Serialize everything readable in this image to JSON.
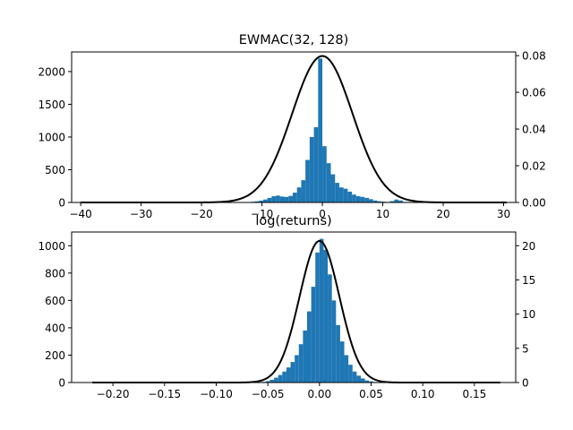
{
  "colors": {
    "bar": "#1f77b4",
    "curve": "#000000",
    "axes": "#000000",
    "background": "#ffffff"
  },
  "chart_data": [
    {
      "type": "bar",
      "title": "EWMAC(32, 128)",
      "xlabel": "",
      "ylabel": "",
      "grid": false,
      "xlim": [
        -41.5,
        32.0
      ],
      "ylim": [
        0,
        2300
      ],
      "y2lim": [
        0,
        0.082
      ],
      "xticks": [
        -40,
        -30,
        -20,
        -10,
        0,
        10,
        20,
        30
      ],
      "xtick_labels": [
        "−40",
        "−30",
        "−20",
        "−10",
        "0",
        "10",
        "20",
        "30"
      ],
      "yticks": [
        0,
        500,
        1000,
        1500,
        2000
      ],
      "ytick_labels": [
        "0",
        "500",
        "1000",
        "1500",
        "2000"
      ],
      "y2ticks": [
        0,
        0.02,
        0.04,
        0.06,
        0.08
      ],
      "y2tick_labels": [
        "0.00",
        "0.02",
        "0.04",
        "0.06",
        "0.08"
      ],
      "histogram": {
        "series_name": "",
        "bin_width": 0.7,
        "bin_centers": [
          -12.25,
          -11.55,
          -10.85,
          -10.15,
          -9.45,
          -8.75,
          -8.05,
          -7.35,
          -6.65,
          -5.95,
          -5.25,
          -4.55,
          -3.85,
          -3.15,
          -2.45,
          -1.75,
          -1.05,
          -0.35,
          0.35,
          1.05,
          1.75,
          2.45,
          3.15,
          3.85,
          4.55,
          5.25,
          5.95,
          6.65,
          7.35,
          8.05,
          8.75,
          9.45,
          10.15,
          10.85,
          11.55,
          12.25,
          12.95,
          13.65,
          14.35,
          15.05
        ],
        "counts": [
          6,
          10,
          18,
          28,
          45,
          70,
          95,
          105,
          90,
          85,
          100,
          150,
          230,
          340,
          650,
          1000,
          1150,
          2200,
          860,
          600,
          430,
          300,
          230,
          210,
          165,
          120,
          95,
          85,
          70,
          50,
          30,
          18,
          12,
          8,
          20,
          45,
          30,
          8,
          5,
          3
        ]
      },
      "density_curve": {
        "distribution": "normal fit",
        "mean": 0.0,
        "std": 5.0,
        "x_range": [
          -40.0,
          30.5
        ],
        "peak": 0.0798
      }
    },
    {
      "type": "bar",
      "title": "log(returns)",
      "xlabel": "",
      "ylabel": "",
      "grid": false,
      "xlim": [
        -0.24,
        0.19
      ],
      "ylim": [
        0,
        1100
      ],
      "y2lim": [
        0,
        22
      ],
      "xticks": [
        -0.2,
        -0.15,
        -0.1,
        -0.05,
        0.0,
        0.05,
        0.1,
        0.15
      ],
      "xtick_labels": [
        "−0.20",
        "−0.15",
        "−0.10",
        "−0.05",
        "0.00",
        "0.05",
        "0.10",
        "0.15"
      ],
      "yticks": [
        0,
        200,
        400,
        600,
        800,
        1000
      ],
      "ytick_labels": [
        "0",
        "200",
        "400",
        "600",
        "800",
        "1000"
      ],
      "y2ticks": [
        0,
        5,
        10,
        15,
        20
      ],
      "y2tick_labels": [
        "0",
        "5",
        "10",
        "15",
        "20"
      ],
      "histogram": {
        "series_name": "",
        "bin_width": 0.004,
        "bin_centers": [
          -0.054,
          -0.05,
          -0.046,
          -0.042,
          -0.038,
          -0.034,
          -0.03,
          -0.026,
          -0.022,
          -0.018,
          -0.014,
          -0.01,
          -0.006,
          -0.002,
          0.002,
          0.006,
          0.01,
          0.014,
          0.018,
          0.022,
          0.026,
          0.03,
          0.034,
          0.038,
          0.042,
          0.046,
          0.05,
          0.054
        ],
        "counts": [
          5,
          10,
          20,
          35,
          55,
          80,
          110,
          150,
          200,
          280,
          380,
          520,
          700,
          950,
          1050,
          970,
          790,
          600,
          420,
          300,
          200,
          130,
          80,
          50,
          30,
          15,
          8,
          4
        ]
      },
      "density_curve": {
        "distribution": "normal fit",
        "mean": 0.0,
        "std": 0.0193,
        "x_range": [
          -0.22,
          0.175
        ],
        "peak": 20.7
      }
    }
  ]
}
